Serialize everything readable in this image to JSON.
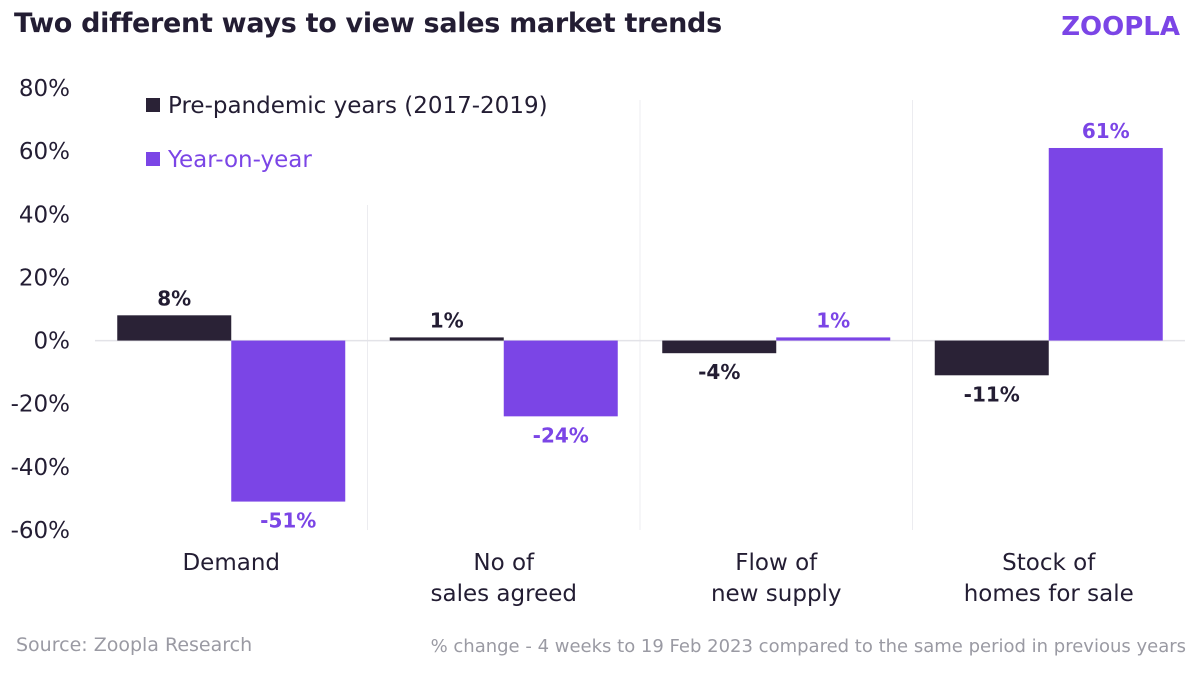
{
  "header": {
    "title": "Two different ways to view sales market trends",
    "brand": "ZOOPLA"
  },
  "footer": {
    "source": "Source: Zoopla Research",
    "note": "% change - 4 weeks to 19 Feb 2023 compared to the same period in previous years"
  },
  "colors": {
    "series1": "#2a2236",
    "series2": "#7b45e6",
    "text": "#231d33",
    "muted": "#9a9aa3"
  },
  "chart_data": {
    "type": "bar",
    "categories": [
      [
        "Demand"
      ],
      [
        "No of",
        "sales agreed"
      ],
      [
        "Flow of",
        "new supply"
      ],
      [
        "Stock of",
        "homes for sale"
      ]
    ],
    "series": [
      {
        "name": "Pre-pandemic years (2017-2019)",
        "values": [
          8,
          1,
          -4,
          -11
        ],
        "labels": [
          "8%",
          "1%",
          "-4%",
          "-11%"
        ]
      },
      {
        "name": "Year-on-year",
        "values": [
          -51,
          -24,
          1,
          61
        ],
        "labels": [
          "-51%",
          "-24%",
          "1%",
          "61%"
        ]
      }
    ],
    "y_ticks": [
      "80%",
      "60%",
      "40%",
      "20%",
      "0%",
      "-20%",
      "-40%",
      "-60%"
    ],
    "ylim": [
      -60,
      80
    ],
    "legend_position": "top-left",
    "grid": false
  }
}
